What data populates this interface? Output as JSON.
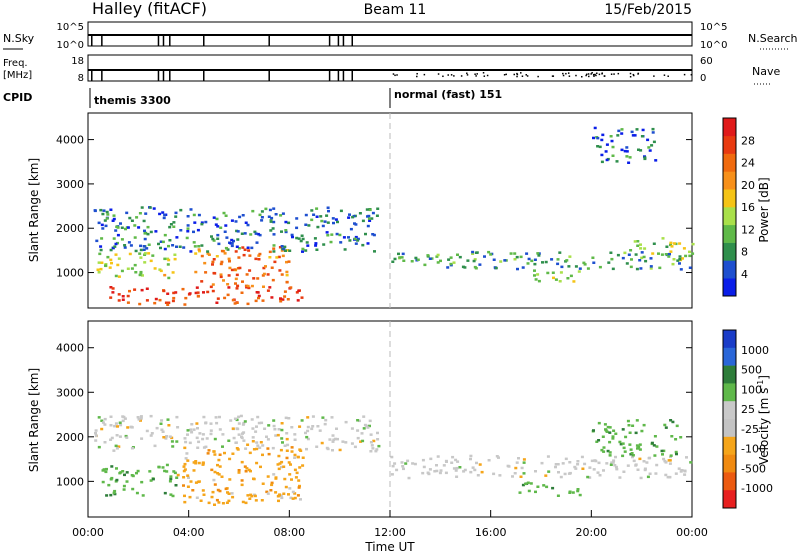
{
  "header": {
    "station": "Halley (fitACF)",
    "beam": "Beam 11",
    "date": "15/Feb/2015"
  },
  "strip_panels": {
    "nsky": {
      "left_label": "N.Sky",
      "right_label": "N.Search",
      "left_ticks": [
        "10^5",
        "10^0"
      ],
      "right_ticks": [
        "10^5",
        "10^0"
      ]
    },
    "freq": {
      "left_label_1": "Freq.",
      "left_label_2": "[MHz]",
      "right_label": "Nave",
      "left_ticks": [
        "18",
        "8"
      ],
      "right_ticks": [
        "60",
        "0"
      ]
    },
    "cpid": {
      "label": "CPID",
      "modes": [
        {
          "name": "themis 3300",
          "start_hour": 0
        },
        {
          "name": "normal (fast) 151",
          "start_hour": 12
        }
      ]
    }
  },
  "colors": {
    "power": [
      "#0a1ee8",
      "#1e4fcf",
      "#2f8f4c",
      "#5fb948",
      "#a9e04a",
      "#f5c416",
      "#f7901a",
      "#f06a0e",
      "#e83a10",
      "#e01a1a"
    ],
    "velocity": [
      "#1a3cc8",
      "#2a66d8",
      "#2e7d3a",
      "#5fb84a",
      "#c9c9c9",
      "#c4c4c4",
      "#f5a51a",
      "#f08a10",
      "#ec5a10",
      "#e82020"
    ]
  },
  "chart_data": [
    {
      "type": "heatmap",
      "name": "power",
      "ylabel": "Slant Range [km]",
      "yticks": [
        "1000",
        "2000",
        "3000",
        "4000"
      ],
      "ylim": [
        200,
        4600
      ],
      "xlim": [
        0,
        24
      ],
      "colorbar_label": "Power [dB]",
      "colorbar_ticks": [
        "4",
        "8",
        "12",
        "16",
        "20",
        "24",
        "28"
      ],
      "colorbar_range": [
        0,
        30
      ],
      "features": [
        {
          "t0": 0.5,
          "t1": 8.5,
          "r0": 300,
          "r1": 700,
          "level": 26
        },
        {
          "t0": 4.2,
          "t1": 8.0,
          "r0": 700,
          "r1": 1600,
          "level": 22
        },
        {
          "t0": 0.3,
          "t1": 3.5,
          "r0": 900,
          "r1": 1500,
          "level": 14
        },
        {
          "t0": 0.2,
          "t1": 11.5,
          "r0": 1500,
          "r1": 2500,
          "level": 6
        },
        {
          "t0": 12.0,
          "t1": 24.0,
          "r0": 1100,
          "r1": 1500,
          "level": 8
        },
        {
          "t0": 17.5,
          "t1": 19.5,
          "r0": 800,
          "r1": 1100,
          "level": 14
        },
        {
          "t0": 21.5,
          "t1": 24.0,
          "r0": 1300,
          "r1": 1800,
          "level": 12
        },
        {
          "t0": 20.0,
          "t1": 22.5,
          "r0": 3500,
          "r1": 4300,
          "level": 5
        }
      ]
    },
    {
      "type": "heatmap",
      "name": "velocity",
      "ylabel": "Slant Range [km]",
      "yticks": [
        "1000",
        "2000",
        "3000",
        "4000"
      ],
      "ylim": [
        200,
        4600
      ],
      "xlabel": "Time UT",
      "xticks": [
        "00:00",
        "04:00",
        "08:00",
        "12:00",
        "16:00",
        "20:00",
        "00:00"
      ],
      "xlim": [
        0,
        24
      ],
      "colorbar_label": "Velocity [m s^-1]",
      "colorbar_ticks": [
        "1000",
        "500",
        "100",
        "25",
        "-25",
        "-100",
        "-500",
        "-1000"
      ],
      "features": [
        {
          "t0": 0.2,
          "t1": 11.5,
          "r0": 1700,
          "r1": 2500,
          "value": 0
        },
        {
          "t0": 0.5,
          "t1": 3.5,
          "r0": 700,
          "r1": 1400,
          "value": 150
        },
        {
          "t0": 3.5,
          "t1": 8.5,
          "r0": 500,
          "r1": 1800,
          "value": -150
        },
        {
          "t0": 12.0,
          "t1": 24.0,
          "r0": 1100,
          "r1": 1600,
          "value": 0
        },
        {
          "t0": 17.0,
          "t1": 19.5,
          "r0": 700,
          "r1": 1000,
          "value": 150
        },
        {
          "t0": 20.0,
          "t1": 23.5,
          "r0": 1600,
          "r1": 2400,
          "value": 100
        }
      ]
    }
  ]
}
